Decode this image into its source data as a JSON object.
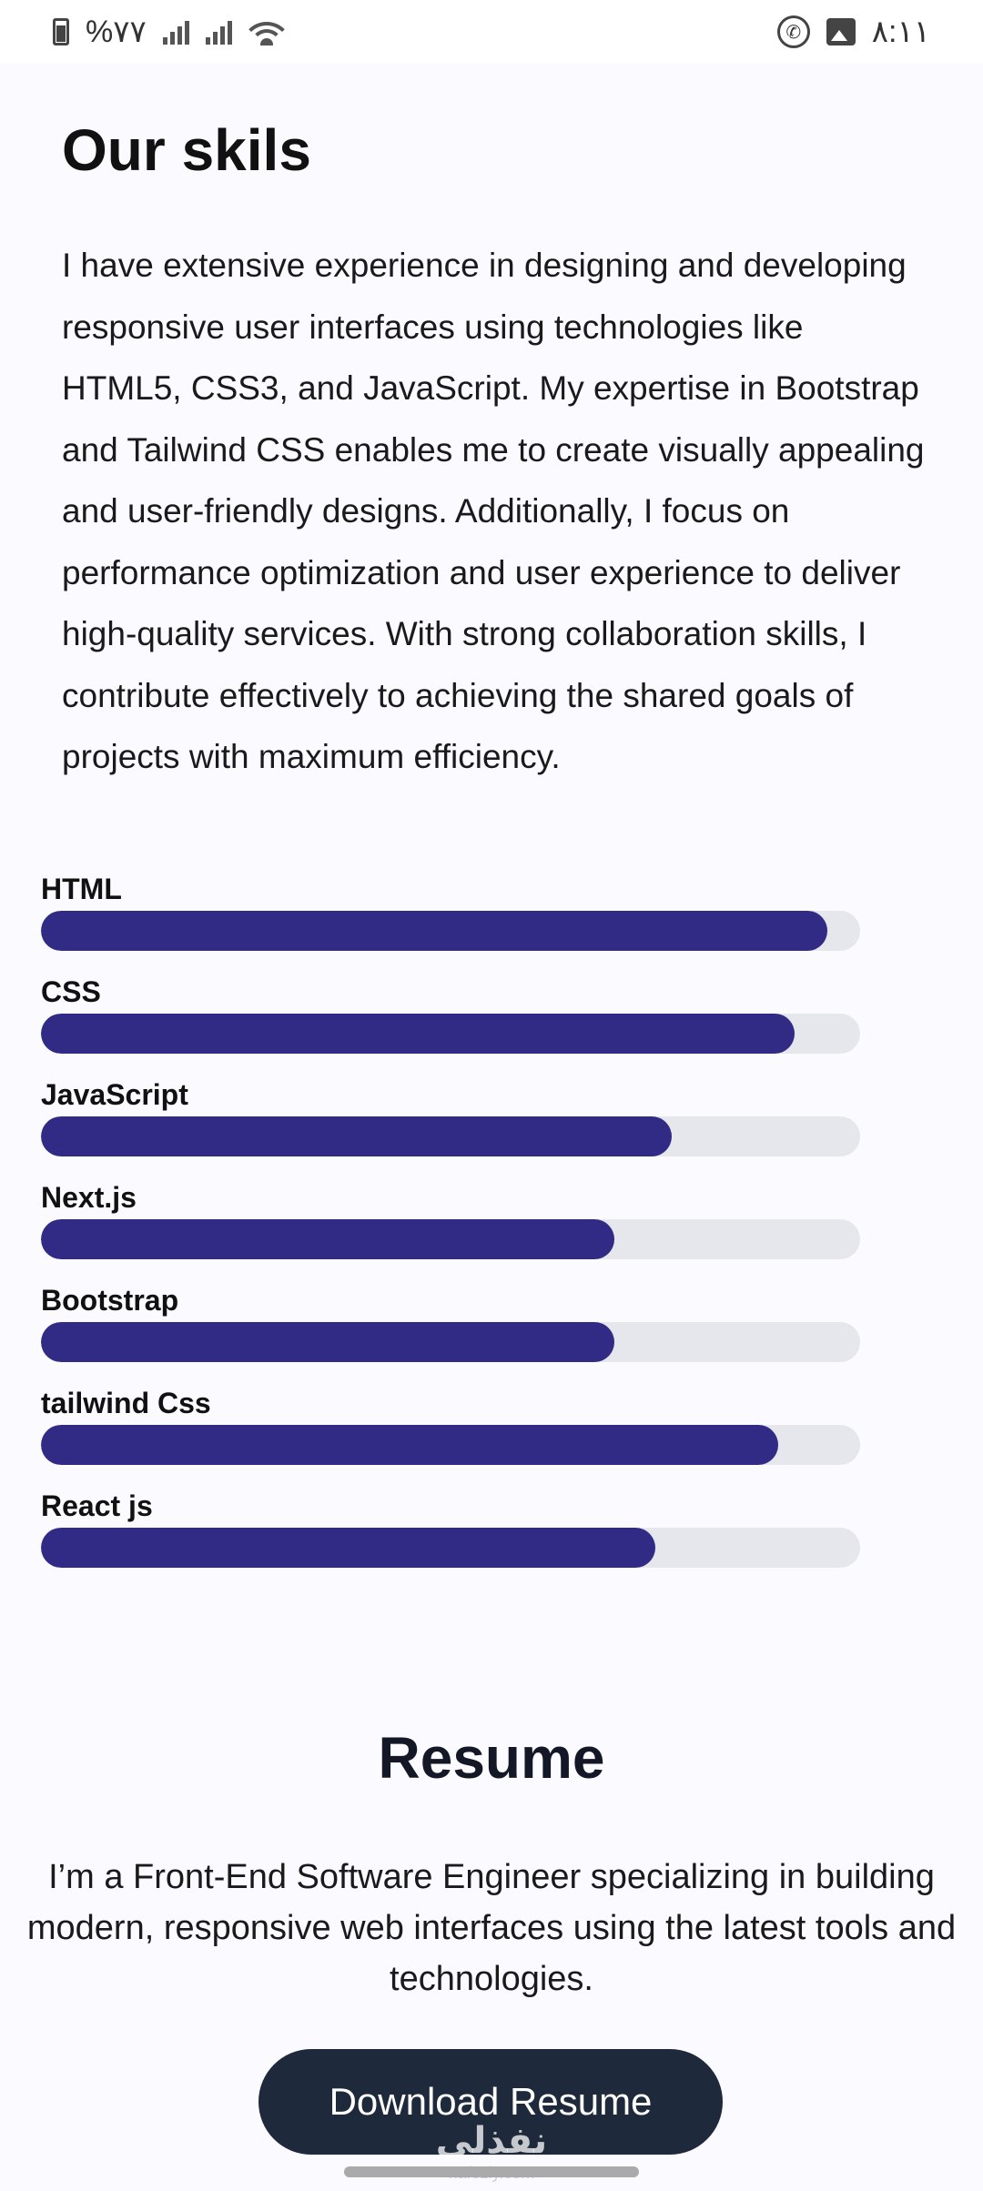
{
  "status_bar": {
    "battery_text": "%۷۷",
    "time": "۸:۱۱"
  },
  "skills": {
    "title": "Our skils",
    "description": "I have extensive experience in designing and developing responsive user interfaces using technologies like HTML5, CSS3, and JavaScript. My expertise in Bootstrap and Tailwind CSS enables me to create visually appealing and user-friendly designs. Additionally, I focus on performance optimization and user experience to deliver high-quality services. With strong collaboration skills, I contribute effectively to achieving the shared goals of projects with maximum efficiency.",
    "items": [
      {
        "name": "HTML",
        "percent": 96
      },
      {
        "name": "CSS",
        "percent": 92
      },
      {
        "name": "JavaScript",
        "percent": 77
      },
      {
        "name": "Next.js",
        "percent": 70
      },
      {
        "name": "Bootstrap",
        "percent": 70
      },
      {
        "name": "tailwind Css",
        "percent": 90
      },
      {
        "name": "React js",
        "percent": 75
      }
    ],
    "colors": {
      "fill": "#312b85",
      "track": "#e6e7ec"
    }
  },
  "resume": {
    "title": "Resume",
    "description": "I’m a Front-End Software Engineer specializing in building modern, responsive web interfaces using the latest tools and technologies.",
    "download_label": "Download Resume"
  },
  "watermark": {
    "text": "نفذلي",
    "sub": "nafezly.com"
  }
}
